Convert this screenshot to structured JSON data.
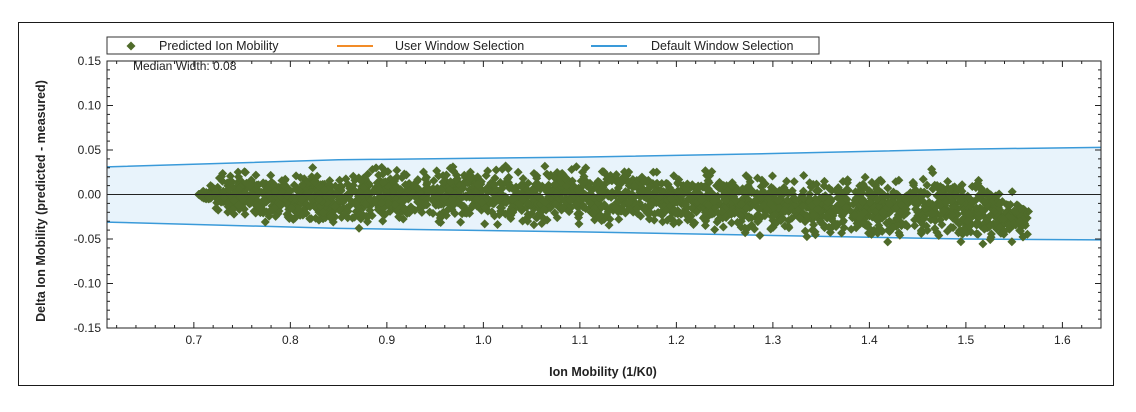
{
  "chart_data": {
    "type": "scatter",
    "xlabel": "Ion Mobility (1/K0)",
    "ylabel": "Delta Ion Mobility (predicted - measured)",
    "xlim": [
      0.61,
      1.64
    ],
    "ylim": [
      -0.15,
      0.15
    ],
    "x_ticks": [
      0.7,
      0.8,
      0.9,
      1.0,
      1.1,
      1.2,
      1.3,
      1.4,
      1.5,
      1.6
    ],
    "y_ticks": [
      -0.15,
      -0.1,
      -0.05,
      0.0,
      0.05,
      0.1,
      0.15
    ],
    "x_tick_labels": [
      "0.7",
      "0.8",
      "0.9",
      "1.0",
      "1.1",
      "1.2",
      "1.3",
      "1.4",
      "1.5",
      "1.6"
    ],
    "y_tick_labels": [
      "-0.15",
      "-0.10",
      "-0.05",
      "0.00",
      "0.05",
      "0.10",
      "0.15"
    ],
    "annotation": "Median Width: 0.08",
    "legend": {
      "placement": "top",
      "entries": [
        {
          "label": "Predicted Ion Mobility",
          "marker": "diamond",
          "color": "#4f6b2a"
        },
        {
          "label": "User Window Selection",
          "marker": "line",
          "color": "#f28c28"
        },
        {
          "label": "Default Window Selection",
          "marker": "line",
          "color": "#3a9ad9"
        }
      ]
    },
    "series": [
      {
        "name": "Predicted Ion Mobility",
        "color": "#4f6b2a",
        "x_range": [
          0.705,
          1.565
        ],
        "upper_envelope": [
          [
            0.705,
            0.0
          ],
          [
            0.73,
            0.03
          ],
          [
            0.85,
            0.037
          ],
          [
            0.9,
            0.038
          ],
          [
            1.0,
            0.036
          ],
          [
            1.1,
            0.04
          ],
          [
            1.2,
            0.03
          ],
          [
            1.3,
            0.03
          ],
          [
            1.4,
            0.028
          ],
          [
            1.48,
            0.036
          ],
          [
            1.565,
            0.005
          ]
        ],
        "lower_envelope": [
          [
            0.705,
            0.0
          ],
          [
            0.73,
            -0.03
          ],
          [
            0.85,
            -0.045
          ],
          [
            0.9,
            -0.042
          ],
          [
            1.0,
            -0.04
          ],
          [
            1.1,
            -0.042
          ],
          [
            1.2,
            -0.04
          ],
          [
            1.3,
            -0.055
          ],
          [
            1.4,
            -0.06
          ],
          [
            1.48,
            -0.062
          ],
          [
            1.565,
            -0.055
          ]
        ]
      },
      {
        "name": "Default Window Selection",
        "color": "#3a9ad9",
        "upper": [
          [
            0.61,
            0.031
          ],
          [
            0.85,
            0.039
          ],
          [
            1.1,
            0.042
          ],
          [
            1.3,
            0.046
          ],
          [
            1.5,
            0.051
          ],
          [
            1.64,
            0.053
          ]
        ],
        "lower": [
          [
            0.61,
            -0.031
          ],
          [
            0.85,
            -0.038
          ],
          [
            1.1,
            -0.042
          ],
          [
            1.3,
            -0.046
          ],
          [
            1.5,
            -0.05
          ],
          [
            1.64,
            -0.051
          ]
        ]
      }
    ],
    "zero_line": 0.0,
    "grid": false
  }
}
